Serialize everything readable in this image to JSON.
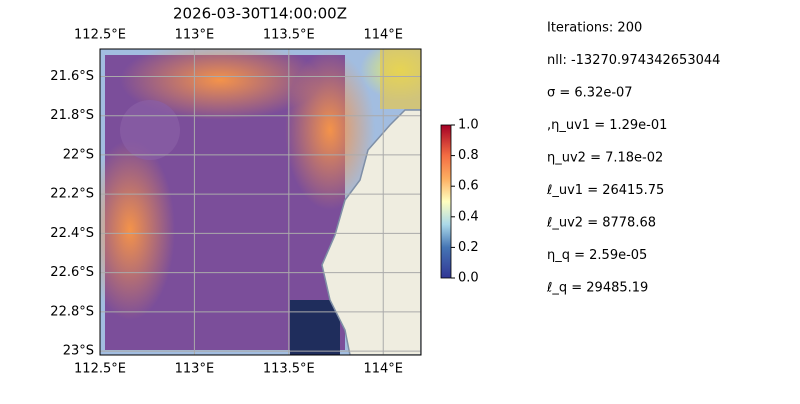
{
  "title": "2026-03-30T14:00:00Z",
  "map": {
    "xlim": [
      112.5,
      114.2
    ],
    "ylim": [
      -23.02,
      -21.46
    ],
    "xticks": [
      {
        "value": 112.5,
        "label": "112.5°E"
      },
      {
        "value": 113,
        "label": "113°E"
      },
      {
        "value": 113.5,
        "label": "113.5°E"
      },
      {
        "value": 114,
        "label": "114°E"
      }
    ],
    "yticks": [
      {
        "value": -21.6,
        "label": "21.6°S"
      },
      {
        "value": -21.8,
        "label": "21.8°S"
      },
      {
        "value": -22,
        "label": "22°S"
      },
      {
        "value": -22.2,
        "label": "22.2°S"
      },
      {
        "value": -22.4,
        "label": "22.4°S"
      },
      {
        "value": -22.6,
        "label": "22.6°S"
      },
      {
        "value": -22.8,
        "label": "22.8°S"
      },
      {
        "value": -23,
        "label": "23°S"
      }
    ],
    "grid": true
  },
  "colorbar": {
    "lim": [
      0,
      1
    ],
    "ticks": [
      {
        "value": 0,
        "label": "0.0"
      },
      0.2,
      0.4,
      0.6,
      0.8,
      {
        "value": 1,
        "label": "1.0"
      }
    ]
  },
  "annotations": [
    "Iterations: 200",
    "nll: -13270.974342653044",
    "σ = 6.32e-07",
    ",η_uv1 = 1.29e-01",
    "η_uv2 = 7.18e-02",
    "ℓ_uv1 = 26415.75",
    "ℓ_uv2 = 8778.68",
    "η_q = 2.59e-05",
    "ℓ_q = 29485.19"
  ]
}
